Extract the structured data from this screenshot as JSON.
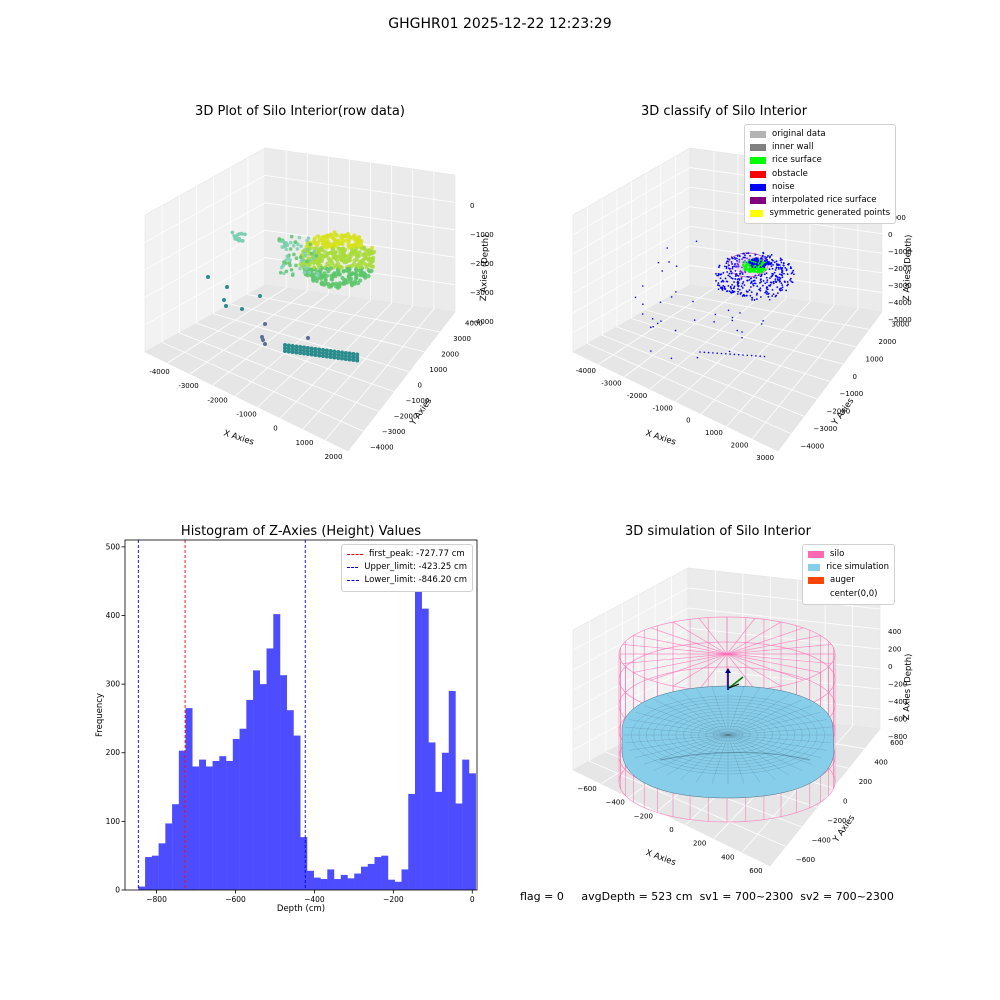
{
  "suptitle": "GHGHR01 2025-12-22 12:23:29",
  "status": {
    "flag": "flag = 0",
    "avg_depth": "avgDepth = 523 cm",
    "sv1": "sv1 = 700~2300",
    "sv2": "sv2 = 700~2300"
  },
  "chart_data": [
    {
      "type": "scatter",
      "subtype": "3d",
      "title": "3D Plot of Silo Interior(row data)",
      "xlabel": "X Axies",
      "ylabel": "Y Axies",
      "zlabel": "Z Axies (Depth)",
      "x_ticks": [
        "-4000",
        "-3000",
        "-2000",
        "-1000",
        "0",
        "1000",
        "2000"
      ],
      "y_ticks": [
        "4000",
        "3000",
        "2000",
        "1000",
        "0",
        "−1000",
        "−2000",
        "−3000",
        "−4000"
      ],
      "z_ticks": [
        "0",
        "−1000",
        "−2000",
        "−3000",
        "−4000"
      ],
      "grid": true,
      "colors": {
        "low": "#2a8c8c",
        "mid": "#5cc56a",
        "high": "#d6e21a"
      }
    },
    {
      "type": "scatter",
      "subtype": "3d",
      "title": "3D classify of Silo Interior",
      "xlabel": "X Axies",
      "ylabel": "Y Axies",
      "zlabel": "Z Axies (Depth)",
      "x_ticks": [
        "-4000",
        "-3000",
        "-2000",
        "-1000",
        "0",
        "1000",
        "2000",
        "3000"
      ],
      "y_ticks": [
        "3000",
        "2000",
        "1000",
        "0",
        "−1000",
        "−2000",
        "−3000",
        "−4000"
      ],
      "z_ticks": [
        "1000",
        "0",
        "−1000",
        "−2000",
        "−3000",
        "−4000",
        "−5000"
      ],
      "grid": true,
      "legend_position": "top-right",
      "legend": [
        {
          "label": "original data",
          "color": "#b3b3b3"
        },
        {
          "label": "inner wall",
          "color": "#808080"
        },
        {
          "label": "rice surface",
          "color": "#00ff00"
        },
        {
          "label": "obstacle",
          "color": "#ff0000"
        },
        {
          "label": "noise",
          "color": "#0000ff"
        },
        {
          "label": "interpolated rice surface",
          "color": "#800080"
        },
        {
          "label": "symmetric generated points",
          "color": "#ffff00"
        }
      ]
    },
    {
      "type": "bar",
      "subtype": "histogram",
      "title": "Histogram of Z-Axies (Height) Values",
      "xlabel": "Depth (cm)",
      "ylabel": "Frequency",
      "xlim": [
        -880,
        12
      ],
      "ylim": [
        0,
        510
      ],
      "x_ticks": [
        -800,
        -600,
        -400,
        -200,
        0
      ],
      "y_ticks": [
        0,
        100,
        200,
        300,
        400,
        500
      ],
      "bin_start": -846.2,
      "bin_width": 17.1,
      "values": [
        5,
        48,
        50,
        68,
        97,
        125,
        203,
        265,
        180,
        190,
        180,
        188,
        195,
        188,
        220,
        235,
        277,
        320,
        300,
        352,
        402,
        313,
        262,
        225,
        77,
        28,
        18,
        16,
        30,
        16,
        22,
        17,
        24,
        34,
        38,
        48,
        50,
        15,
        12,
        30,
        140,
        478,
        410,
        215,
        143,
        200,
        290,
        126,
        190,
        170
      ],
      "bar_color": "#4d4dff",
      "legend_position": "top-right",
      "lines": [
        {
          "label": "first_peak: -727.77 cm",
          "x": -727.77,
          "color": "#ff0000"
        },
        {
          "label": "Upper_limit: -423.25 cm",
          "x": -423.25,
          "color": "#0000ff"
        },
        {
          "label": "Lower_limit: -846.20 cm",
          "x": -846.2,
          "color": "#0000ff"
        }
      ]
    },
    {
      "type": "area",
      "subtype": "3d-surface",
      "title": "3D simulation of Silo Interior",
      "xlabel": "X Axies",
      "ylabel": "Y Axies",
      "zlabel": "Z Axies (Depth)",
      "x_ticks": [
        "−600",
        "−400",
        "−200",
        "0",
        "200",
        "400",
        "600"
      ],
      "y_ticks": [
        "600",
        "400",
        "200",
        "0",
        "−200",
        "−400",
        "−600"
      ],
      "z_ticks": [
        "400",
        "200",
        "0",
        "−200",
        "−400",
        "−600",
        "−800"
      ],
      "grid": true,
      "legend_position": "top-right",
      "legend": [
        {
          "label": "silo",
          "color": "#ff69b4"
        },
        {
          "label": "rice simulation",
          "color": "#87ceeb"
        },
        {
          "label": "auger",
          "color": "#ff4500"
        },
        {
          "label": "center(0,0)",
          "color": "#ffffff"
        }
      ]
    }
  ]
}
